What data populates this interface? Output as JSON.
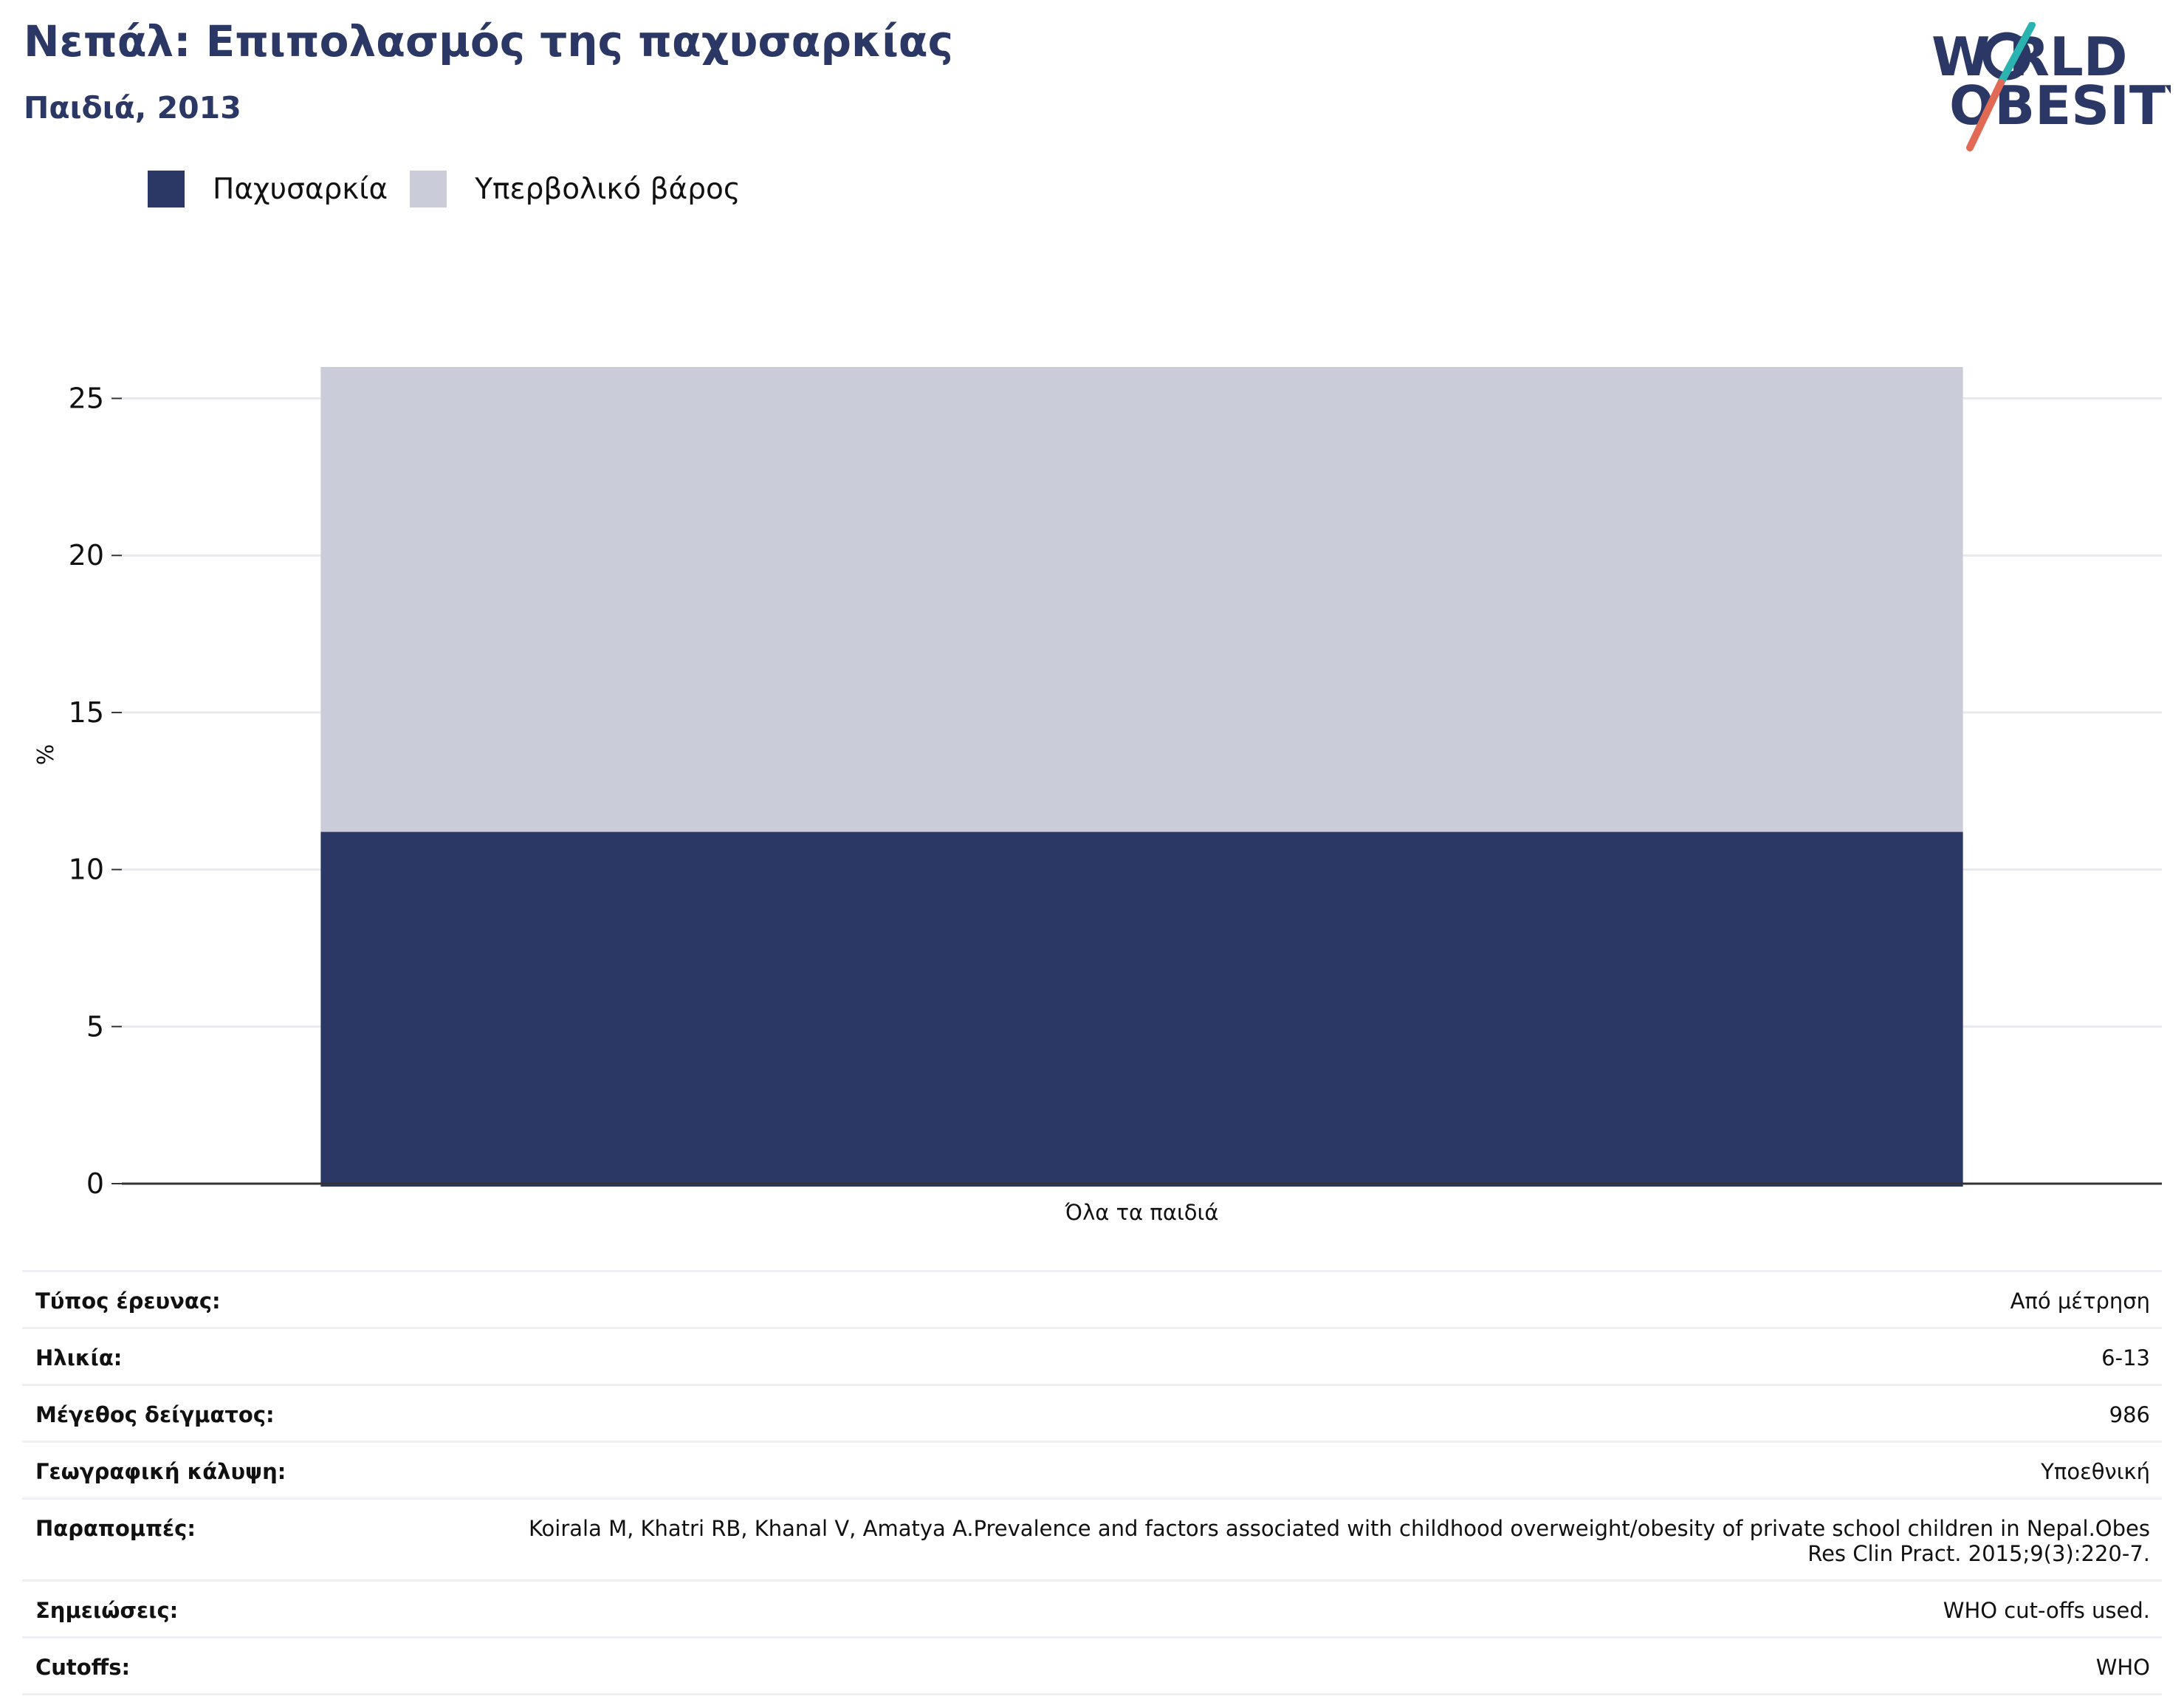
{
  "header": {
    "title": "Νεπάλ: Επιπολασμός της παχυσαρκίας",
    "subtitle": "Παιδιά, 2013"
  },
  "logo": {
    "line1": "W RLD",
    "line2": "OBESITY",
    "colors": {
      "text": "#2b3764",
      "slash_top": "#2ab3b1",
      "slash_bottom": "#e26a55"
    }
  },
  "legend": [
    {
      "label": "Παχυσαρκία",
      "color": "#2b3764"
    },
    {
      "label": "Υπερβολικό βάρος",
      "color": "#cacdd9"
    }
  ],
  "chart_data": {
    "type": "bar",
    "stacked": true,
    "categories": [
      "Όλα τα παιδιά"
    ],
    "series": [
      {
        "name": "Παχυσαρκία",
        "values": [
          11.2
        ],
        "color": "#2b3764"
      },
      {
        "name": "Υπερβολικό βάρος",
        "values": [
          14.8
        ],
        "color": "#cacdd9"
      }
    ],
    "ylabel": "%",
    "xlabel": "",
    "ylim": [
      0,
      26
    ],
    "yticks": [
      0,
      5,
      10,
      15,
      20,
      25
    ],
    "grid": true,
    "legend_position": "top-left"
  },
  "info": [
    {
      "key": "Τύπος έρευνας:",
      "value": "Από μέτρηση"
    },
    {
      "key": "Ηλικία:",
      "value": "6-13"
    },
    {
      "key": "Μέγεθος δείγματος:",
      "value": "986"
    },
    {
      "key": "Γεωγραφική κάλυψη:",
      "value": "Υποεθνική"
    },
    {
      "key": "Παραπομπές:",
      "value": "Koirala M, Khatri RB, Khanal V, Amatya A.Prevalence and factors associated with childhood overweight/obesity of private school children in Nepal.Obes Res Clin Pract. 2015;9(3):220-7."
    },
    {
      "key": "Σημειώσεις:",
      "value": "WHO cut-offs used."
    },
    {
      "key": "Cutoffs:",
      "value": "WHO"
    }
  ]
}
